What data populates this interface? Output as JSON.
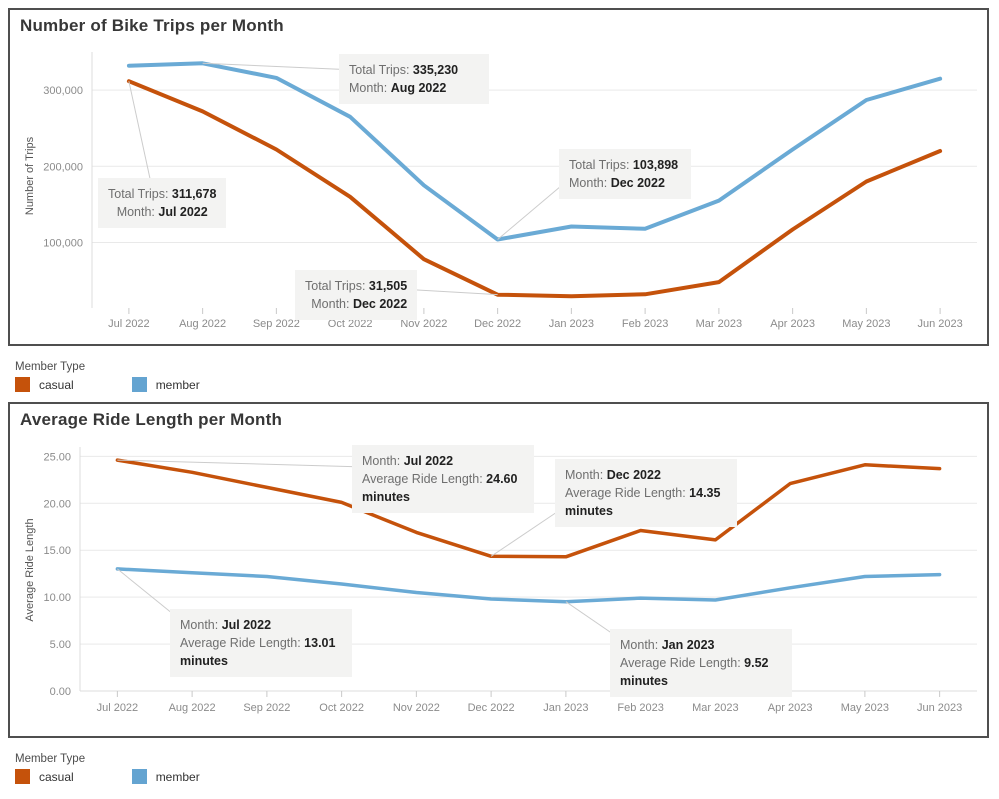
{
  "legend": {
    "title": "Member Type",
    "items": [
      {
        "label": "casual",
        "color": "#c5520b"
      },
      {
        "label": "member",
        "color": "#64a4d1"
      }
    ]
  },
  "chart_data": [
    {
      "type": "line",
      "title": "Number of Bike Trips per Month",
      "ylabel": "Number of Trips",
      "xlabel": "",
      "grid": true,
      "ylim": [
        14000,
        350000
      ],
      "categories": [
        "Jul 2022",
        "Aug 2022",
        "Sep 2022",
        "Oct 2022",
        "Nov 2022",
        "Dec 2022",
        "Jan 2023",
        "Feb 2023",
        "Mar 2023",
        "Apr 2023",
        "May 2023",
        "Jun 2023"
      ],
      "yticks": [
        100000,
        200000,
        300000
      ],
      "ytick_labels": [
        "100,000",
        "200,000",
        "300,000"
      ],
      "series": [
        {
          "name": "casual",
          "color": "#c5520b",
          "values": [
            311678,
            272000,
            222000,
            160000,
            78000,
            31505,
            29500,
            32000,
            48000,
            117000,
            180000,
            220000
          ]
        },
        {
          "name": "member",
          "color": "#6aaad5",
          "values": [
            332000,
            335230,
            316000,
            265000,
            175000,
            103898,
            121000,
            118000,
            155000,
            222000,
            287000,
            315000
          ]
        }
      ],
      "annotations": [
        {
          "lines": [
            {
              "lab": "Total Trips: ",
              "val": "335,230"
            },
            {
              "lab": "Month: ",
              "val": "Aug 2022"
            }
          ],
          "box": {
            "x": 329,
            "y": 44,
            "w": 150,
            "h": 38,
            "align": "left"
          },
          "attach": "left",
          "anchor": {
            "series": 1,
            "cat": 1
          }
        },
        {
          "lines": [
            {
              "lab": "Total Trips: ",
              "val": "311,678"
            },
            {
              "lab": "Month: ",
              "val": "Jul 2022"
            }
          ],
          "box": {
            "x": 88,
            "y": 168,
            "w": 124,
            "h": 38,
            "align": "center"
          },
          "attach": "top",
          "anchor": {
            "series": 0,
            "cat": 0
          }
        },
        {
          "lines": [
            {
              "lab": "Total Trips: ",
              "val": "103,898"
            },
            {
              "lab": "Month: ",
              "val": "Dec 2022"
            }
          ],
          "box": {
            "x": 549,
            "y": 139,
            "w": 132,
            "h": 38,
            "align": "left"
          },
          "attach": "bottomleft",
          "anchor": {
            "series": 1,
            "cat": 5
          }
        },
        {
          "lines": [
            {
              "lab": "Total Trips: ",
              "val": "31,505"
            },
            {
              "lab": "Month: ",
              "val": "Dec 2022"
            }
          ],
          "box": {
            "x": 285,
            "y": 260,
            "w": 118,
            "h": 36,
            "align": "right"
          },
          "attach": "right",
          "anchor": {
            "series": 0,
            "cat": 5
          }
        }
      ]
    },
    {
      "type": "line",
      "title": "Average Ride Length per Month",
      "ylabel": "Average Ride Length",
      "xlabel": "",
      "grid": true,
      "ylim": [
        0,
        26
      ],
      "categories": [
        "Jul 2022",
        "Aug 2022",
        "Sep 2022",
        "Oct 2022",
        "Nov 2022",
        "Dec 2022",
        "Jan 2023",
        "Feb 2023",
        "Mar 2023",
        "Apr 2023",
        "May 2023",
        "Jun 2023"
      ],
      "yticks": [
        0,
        5,
        10,
        15,
        20,
        25
      ],
      "ytick_labels": [
        "0.00",
        "5.00",
        "10.00",
        "15.00",
        "20.00",
        "25.00"
      ],
      "series": [
        {
          "name": "casual",
          "color": "#c5520b",
          "values": [
            24.6,
            23.3,
            21.7,
            20.1,
            16.9,
            14.35,
            14.3,
            17.1,
            16.1,
            22.1,
            24.1,
            23.7
          ]
        },
        {
          "name": "member",
          "color": "#6aaad5",
          "values": [
            13.01,
            12.6,
            12.2,
            11.4,
            10.5,
            9.8,
            9.52,
            9.9,
            9.7,
            11.0,
            12.2,
            12.4
          ]
        }
      ],
      "annotations": [
        {
          "lines": [
            {
              "lab": "Month: ",
              "val": "Jul 2022"
            },
            {
              "lab": "Average Ride Length: ",
              "val": "24.60"
            },
            {
              "lab": "",
              "val": "minutes"
            }
          ],
          "box": {
            "x": 342,
            "y": 41,
            "w": 182,
            "h": 54,
            "align": "left"
          },
          "attach": "left",
          "anchor": {
            "series": 0,
            "cat": 0
          }
        },
        {
          "lines": [
            {
              "lab": "Month: ",
              "val": "Dec 2022"
            },
            {
              "lab": "Average Ride Length: ",
              "val": "14.35"
            },
            {
              "lab": "",
              "val": "minutes"
            }
          ],
          "box": {
            "x": 545,
            "y": 55,
            "w": 182,
            "h": 54,
            "align": "left"
          },
          "attach": "bottomleft",
          "anchor": {
            "series": 0,
            "cat": 5
          }
        },
        {
          "lines": [
            {
              "lab": "Month: ",
              "val": "Jul 2022"
            },
            {
              "lab": "Average Ride Length: ",
              "val": "13.01"
            },
            {
              "lab": "",
              "val": "minutes"
            }
          ],
          "box": {
            "x": 160,
            "y": 205,
            "w": 182,
            "h": 54,
            "align": "left"
          },
          "attach": "topleft",
          "anchor": {
            "series": 1,
            "cat": 0
          }
        },
        {
          "lines": [
            {
              "lab": "Month: ",
              "val": "Jan 2023"
            },
            {
              "lab": "Average Ride Length: ",
              "val": "9.52"
            },
            {
              "lab": "",
              "val": "minutes"
            }
          ],
          "box": {
            "x": 600,
            "y": 225,
            "w": 182,
            "h": 54,
            "align": "left"
          },
          "attach": "topleft",
          "anchor": {
            "series": 1,
            "cat": 6
          }
        }
      ]
    }
  ]
}
